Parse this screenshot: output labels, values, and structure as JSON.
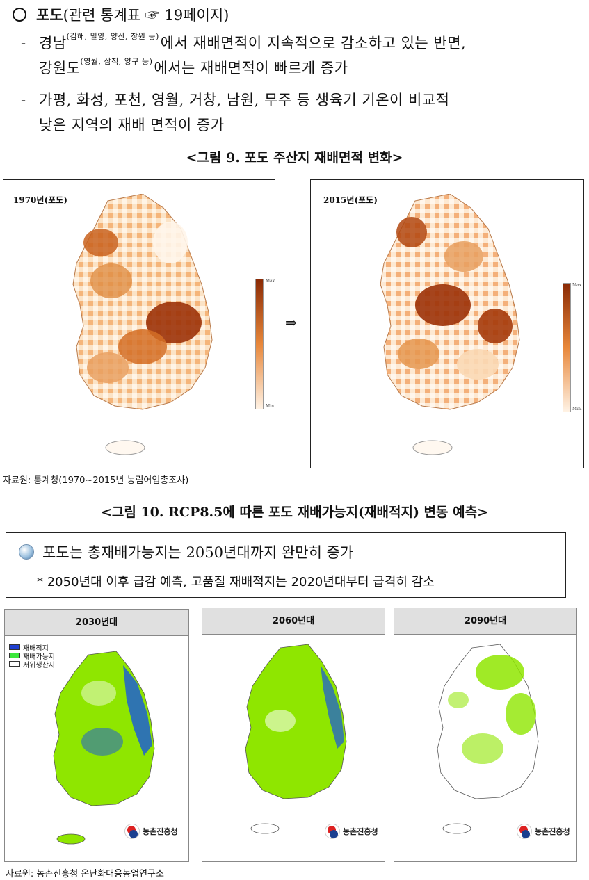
{
  "section": {
    "title_bold": "포도",
    "title_rest": "(관련 통계표 ☞ 19페이지)"
  },
  "bullets": {
    "b1_part1": "경남",
    "b1_sup1": "(김해, 밀양, 양산, 창원 등)",
    "b1_part2": "에서 재배면적이 지속적으로 감소하고 있는 반면,",
    "b1_part3": "강원도",
    "b1_sup2": "(영월, 삼척, 양구 등)",
    "b1_part4": "에서는 재배면적이 빠르게 증가",
    "b2_line1": "가평, 화성, 포천, 영월, 거창, 남원, 무주 등 생육기 기온이 비교적",
    "b2_line2": "낮은 지역의 재배 면적이 증가",
    "dash": "-"
  },
  "figure9": {
    "caption": "<그림 9. 포도 주산지 재배면적 변화>",
    "map1_label": "1970년(포도)",
    "map2_label": "2015년(포도)",
    "arrow": "⇒",
    "legend_max": "Max.",
    "legend_min": "Min.",
    "source": "자료원: 통계청(1970~2015년 농림어업총조사)"
  },
  "figure10": {
    "caption": "<그림 10. RCP8.5에 따른 포도 재배가능지(재배적지) 변동 예측>",
    "summary_main": "포도는 총재배가능지는 2050년대까지 완만히 증가",
    "summary_sub": "* 2050년대 이후 급감 예측, 고품질 재배적지는 2020년대부터 급격히 감소",
    "panels": [
      {
        "title": "2030년대"
      },
      {
        "title": "2060년대"
      },
      {
        "title": "2090년대"
      }
    ],
    "legend": [
      {
        "label": "재배적지",
        "color": "#1f3fd0"
      },
      {
        "label": "재배가능지",
        "color": "#3ce83c"
      },
      {
        "label": "저위생산지",
        "color": "#ffffff"
      }
    ],
    "agency": "농촌진흥청",
    "source": "자료원: 농촌진흥청 온난화대응농업연구소"
  },
  "colors": {
    "orange_max": "#8a2a05",
    "orange_mid": "#e8873a",
    "orange_min": "#fff2e4",
    "green": "#8fe600",
    "blue": "#1f5fd0"
  }
}
